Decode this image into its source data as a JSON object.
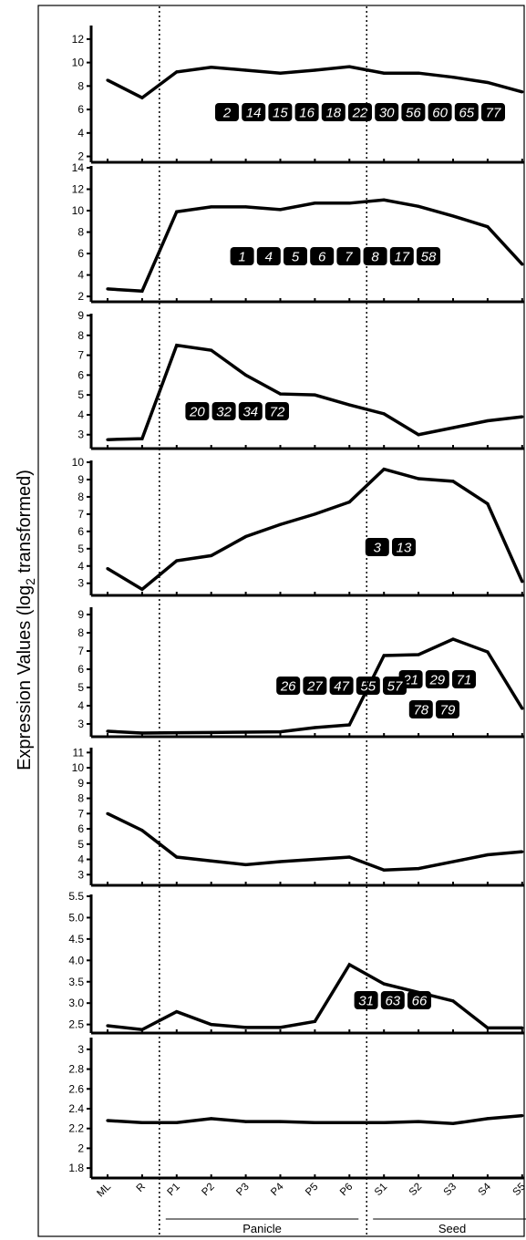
{
  "ylabel_main": "Expression Values (log",
  "ylabel_sub": "2",
  "ylabel_tail": " transformed)",
  "x_categories": [
    "ML",
    "R",
    "P1",
    "P2",
    "P3",
    "P4",
    "P5",
    "P6",
    "S1",
    "S2",
    "S3",
    "S4",
    "S5"
  ],
  "groups": [
    {
      "label": "Panicle",
      "first": "P1",
      "last": "P6"
    },
    {
      "label": "Seed",
      "first": "S1",
      "last": "S5"
    }
  ],
  "chart_data": [
    {
      "type": "line",
      "categories": [
        "ML",
        "R",
        "P1",
        "P2",
        "P3",
        "P4",
        "P5",
        "P6",
        "S1",
        "S2",
        "S3",
        "S4",
        "S5"
      ],
      "values": [
        8.5,
        7.0,
        9.2,
        9.6,
        9.35,
        9.1,
        9.35,
        9.65,
        9.1,
        9.1,
        8.75,
        8.3,
        7.5
      ],
      "yticks": [
        "2",
        "4",
        "6",
        "8",
        "10",
        "12"
      ],
      "ylim": [
        1.5,
        13.0
      ],
      "badges": [
        [
          "2",
          "14",
          "15",
          "16",
          "18",
          "22",
          "30",
          "56",
          "60",
          "65",
          "77"
        ]
      ]
    },
    {
      "type": "line",
      "categories": [
        "ML",
        "R",
        "P1",
        "P2",
        "P3",
        "P4",
        "P5",
        "P6",
        "S1",
        "S2",
        "S3",
        "S4",
        "S5"
      ],
      "values": [
        2.7,
        2.5,
        9.9,
        10.35,
        10.35,
        10.1,
        10.7,
        10.7,
        11.0,
        10.4,
        9.5,
        8.5,
        5.0
      ],
      "yticks": [
        "2",
        "4",
        "6",
        "8",
        "10",
        "12",
        "14"
      ],
      "ylim": [
        1.5,
        14.0
      ],
      "badges": [
        [
          "1",
          "4",
          "5",
          "6",
          "7",
          "8",
          "17",
          "58"
        ]
      ]
    },
    {
      "type": "line",
      "categories": [
        "ML",
        "R",
        "P1",
        "P2",
        "P3",
        "P4",
        "P5",
        "P6",
        "S1",
        "S2",
        "S3",
        "S4",
        "S5"
      ],
      "values": [
        2.75,
        2.8,
        7.5,
        7.25,
        6.0,
        5.05,
        5.0,
        4.5,
        4.05,
        3.0,
        3.35,
        3.7,
        3.9
      ],
      "yticks": [
        "3",
        "4",
        "5",
        "6",
        "7",
        "8",
        "9"
      ],
      "ylim": [
        2.3,
        9.0
      ],
      "badges": [
        [
          "20",
          "32",
          "34",
          "72"
        ]
      ]
    },
    {
      "type": "line",
      "categories": [
        "ML",
        "R",
        "P1",
        "P2",
        "P3",
        "P4",
        "P5",
        "P6",
        "S1",
        "S2",
        "S3",
        "S4",
        "S5"
      ],
      "values": [
        3.85,
        2.65,
        4.3,
        4.6,
        5.7,
        6.4,
        7.0,
        7.7,
        9.6,
        9.05,
        8.9,
        7.6,
        3.1
      ],
      "yticks": [
        "3",
        "4",
        "5",
        "6",
        "7",
        "8",
        "9",
        "10"
      ],
      "ylim": [
        2.3,
        10.0
      ],
      "badges": [
        [
          "3",
          "13"
        ]
      ]
    },
    {
      "type": "line",
      "categories": [
        "ML",
        "R",
        "P1",
        "P2",
        "P3",
        "P4",
        "P5",
        "P6",
        "S1",
        "S2",
        "S3",
        "S4",
        "S5"
      ],
      "values": [
        2.6,
        2.5,
        2.52,
        2.53,
        2.55,
        2.57,
        2.8,
        2.95,
        6.75,
        6.8,
        7.65,
        6.95,
        3.85
      ],
      "yticks": [
        "3",
        "4",
        "5",
        "6",
        "7",
        "8",
        "9"
      ],
      "ylim": [
        2.3,
        9.3
      ],
      "badges": [
        [
          "21",
          "29",
          "71"
        ],
        [
          "78",
          "79"
        ]
      ]
    },
    {
      "type": "line",
      "categories": [
        "ML",
        "R",
        "P1",
        "P2",
        "P3",
        "P4",
        "P5",
        "P6",
        "S1",
        "S2",
        "S3",
        "S4",
        "S5"
      ],
      "values": [
        7.0,
        5.9,
        4.15,
        3.9,
        3.65,
        3.85,
        4.0,
        4.15,
        3.3,
        3.4,
        3.85,
        4.3,
        4.5
      ],
      "yticks": [
        "3",
        "4",
        "5",
        "6",
        "7",
        "8",
        "9",
        "10",
        "11"
      ],
      "ylim": [
        2.3,
        11.2
      ],
      "badges": [
        [
          "26",
          "27",
          "47",
          "55",
          "57"
        ]
      ]
    },
    {
      "type": "line",
      "categories": [
        "ML",
        "R",
        "P1",
        "P2",
        "P3",
        "P4",
        "P5",
        "P6",
        "S1",
        "S2",
        "S3",
        "S4",
        "S5"
      ],
      "values": [
        2.47,
        2.38,
        2.8,
        2.5,
        2.43,
        2.43,
        2.57,
        3.9,
        3.45,
        3.25,
        3.05,
        2.42,
        2.42
      ],
      "yticks": [
        "2.5",
        "3.0",
        "3.5",
        "4.0",
        "4.5",
        "5.0",
        "5.5"
      ],
      "ylim": [
        2.3,
        5.5
      ],
      "badges": [
        [
          "31",
          "63",
          "66"
        ]
      ]
    },
    {
      "type": "line",
      "categories": [
        "ML",
        "R",
        "P1",
        "P2",
        "P3",
        "P4",
        "P5",
        "P6",
        "S1",
        "S2",
        "S3",
        "S4",
        "S5"
      ],
      "values": [
        2.28,
        2.26,
        2.26,
        2.3,
        2.27,
        2.27,
        2.26,
        2.26,
        2.26,
        2.27,
        2.25,
        2.3,
        2.33
      ],
      "yticks": [
        "1.8",
        "2",
        "2.2",
        "2.4",
        "2.6",
        "2.8",
        "3"
      ],
      "ylim": [
        1.7,
        3.1
      ],
      "badges": []
    }
  ]
}
